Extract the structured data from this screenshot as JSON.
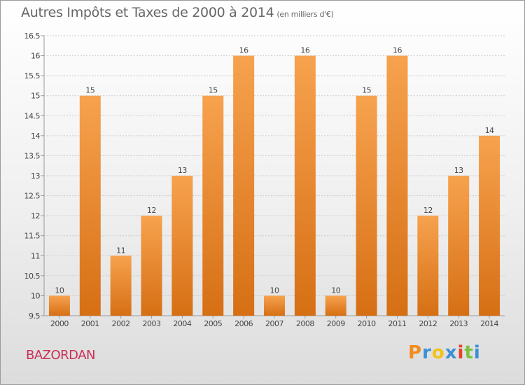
{
  "title": "Autres Impôts et Taxes de 2000 à 2014",
  "subtitle": "(en milliers d'€)",
  "commune": "BAZORDAN",
  "logo": {
    "text": "Proxiti",
    "colors": [
      "#f28c1a",
      "#3a8fd8",
      "#f2c31a",
      "#3a8fd8",
      "#e8402a",
      "#7cc242",
      "#3a8fd8"
    ]
  },
  "colors": {
    "bar_light": "#f7a24e",
    "bar_dark": "#d66f14",
    "axis_text": "#444444",
    "grid": "#cccccc",
    "title": "#666666",
    "commune": "#cc2f58"
  },
  "chart_data": {
    "type": "bar",
    "title": "Autres Impôts et Taxes de 2000 à 2014",
    "subtitle": "(en milliers d'€)",
    "categories": [
      "2000",
      "2001",
      "2002",
      "2003",
      "2004",
      "2005",
      "2006",
      "2007",
      "2008",
      "2009",
      "2010",
      "2011",
      "2012",
      "2013",
      "2014"
    ],
    "values": [
      10,
      15,
      11,
      12,
      13,
      15,
      16,
      10,
      16,
      10,
      15,
      16,
      12,
      13,
      14
    ],
    "ylim": [
      9.5,
      16.5
    ],
    "yticks": [
      "9.5",
      "10",
      "10.5",
      "11",
      "11.5",
      "12",
      "12.5",
      "13",
      "13.5",
      "14",
      "14.5",
      "15",
      "15.5",
      "16",
      "16.5"
    ],
    "grid": true,
    "data_labels": true
  }
}
